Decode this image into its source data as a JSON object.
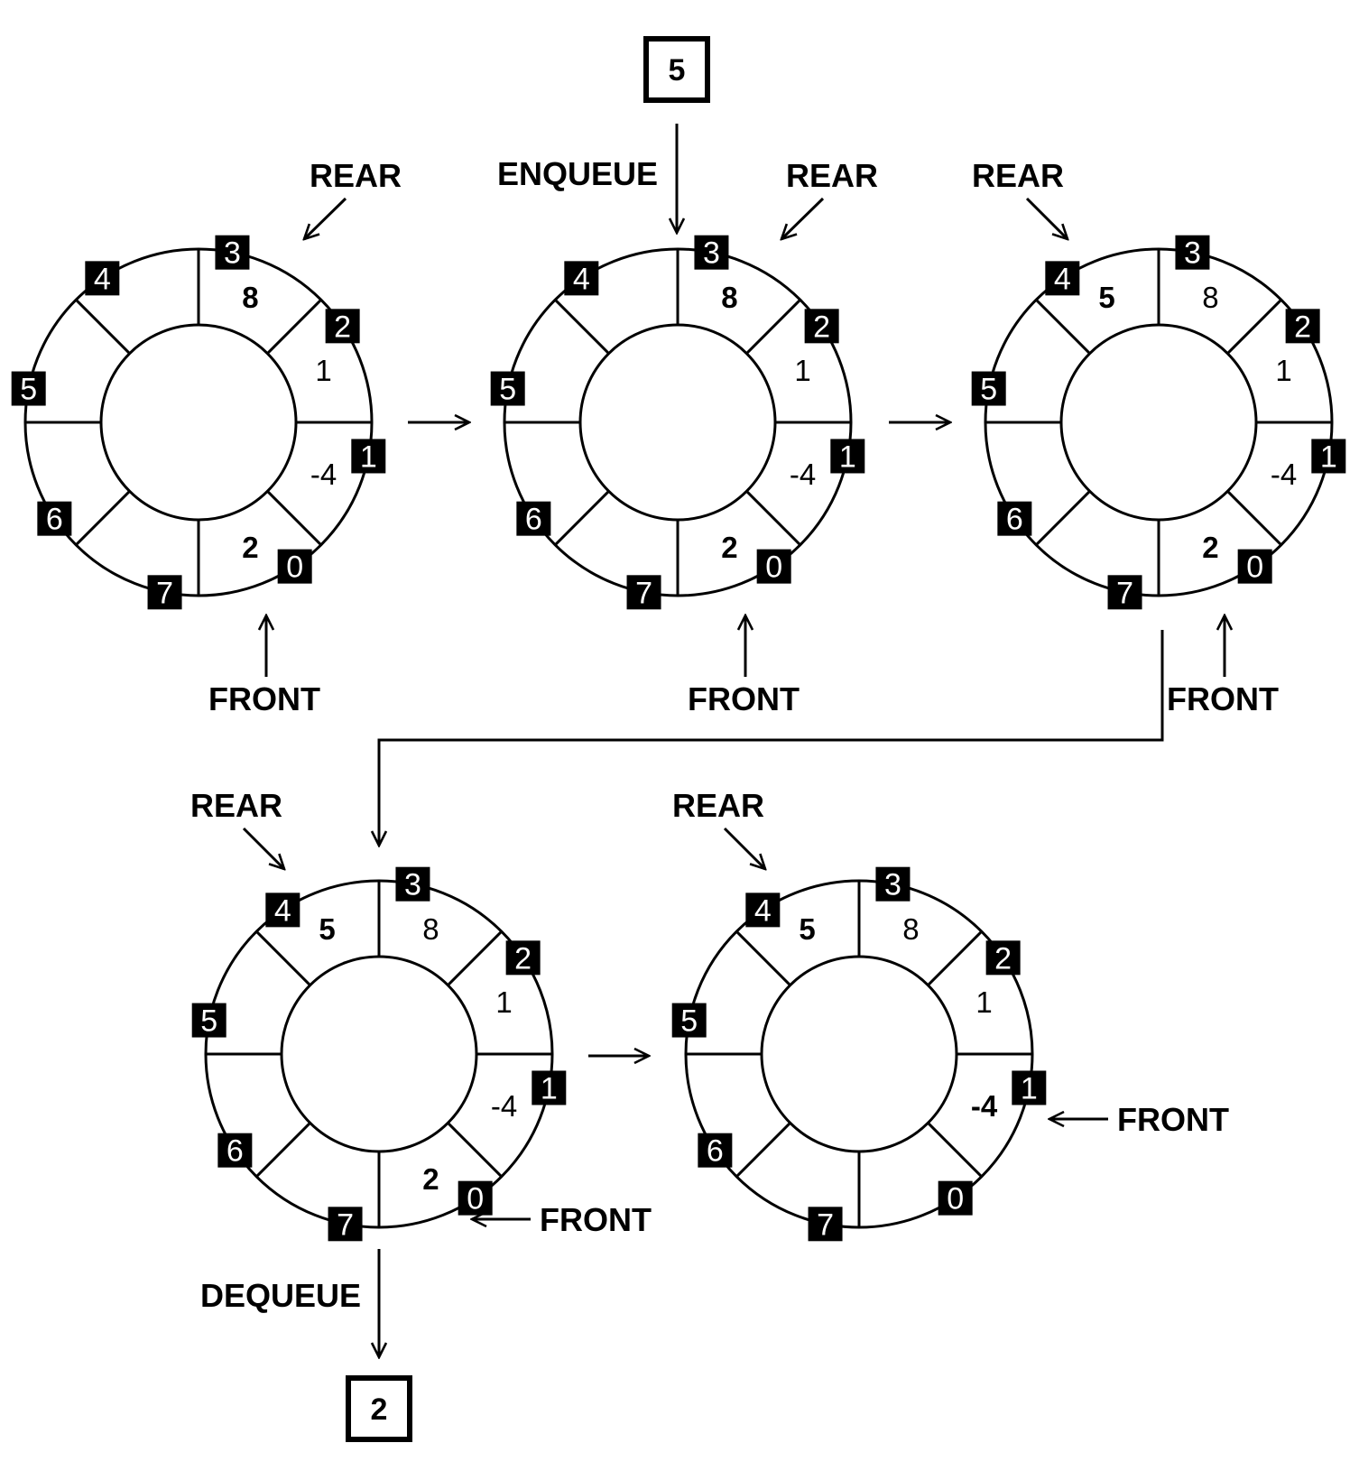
{
  "labels": {
    "rear": "REAR",
    "front": "FRONT",
    "enqueue": "ENQUEUE",
    "dequeue": "DEQUEUE"
  },
  "enqueued_value": "5",
  "dequeued_value": "2",
  "states": [
    {
      "name": "initial",
      "slots": [
        {
          "index": "0",
          "value": "2",
          "bold": true
        },
        {
          "index": "1",
          "value": "-4",
          "bold": false
        },
        {
          "index": "2",
          "value": "1",
          "bold": false
        },
        {
          "index": "3",
          "value": "8",
          "bold": true
        },
        {
          "index": "4",
          "value": "",
          "bold": false
        },
        {
          "index": "5",
          "value": "",
          "bold": false
        },
        {
          "index": "6",
          "value": "",
          "bold": false
        },
        {
          "index": "7",
          "value": "",
          "bold": false
        }
      ]
    },
    {
      "name": "enqueue",
      "slots": [
        {
          "index": "0",
          "value": "2",
          "bold": true
        },
        {
          "index": "1",
          "value": "-4",
          "bold": false
        },
        {
          "index": "2",
          "value": "1",
          "bold": false
        },
        {
          "index": "3",
          "value": "8",
          "bold": true
        },
        {
          "index": "4",
          "value": "",
          "bold": false
        },
        {
          "index": "5",
          "value": "",
          "bold": false
        },
        {
          "index": "6",
          "value": "",
          "bold": false
        },
        {
          "index": "7",
          "value": "",
          "bold": false
        }
      ]
    },
    {
      "name": "after-enqueue",
      "slots": [
        {
          "index": "0",
          "value": "2",
          "bold": true
        },
        {
          "index": "1",
          "value": "-4",
          "bold": false
        },
        {
          "index": "2",
          "value": "1",
          "bold": false
        },
        {
          "index": "3",
          "value": "8",
          "bold": false
        },
        {
          "index": "4",
          "value": "5",
          "bold": true
        },
        {
          "index": "5",
          "value": "",
          "bold": false
        },
        {
          "index": "6",
          "value": "",
          "bold": false
        },
        {
          "index": "7",
          "value": "",
          "bold": false
        }
      ]
    },
    {
      "name": "dequeue",
      "slots": [
        {
          "index": "0",
          "value": "2",
          "bold": true
        },
        {
          "index": "1",
          "value": "-4",
          "bold": false
        },
        {
          "index": "2",
          "value": "1",
          "bold": false
        },
        {
          "index": "3",
          "value": "8",
          "bold": false
        },
        {
          "index": "4",
          "value": "5",
          "bold": true
        },
        {
          "index": "5",
          "value": "",
          "bold": false
        },
        {
          "index": "6",
          "value": "",
          "bold": false
        },
        {
          "index": "7",
          "value": "",
          "bold": false
        }
      ]
    },
    {
      "name": "after-dequeue",
      "slots": [
        {
          "index": "0",
          "value": "",
          "bold": false
        },
        {
          "index": "1",
          "value": "-4",
          "bold": true
        },
        {
          "index": "2",
          "value": "1",
          "bold": false
        },
        {
          "index": "3",
          "value": "8",
          "bold": false
        },
        {
          "index": "4",
          "value": "5",
          "bold": true
        },
        {
          "index": "5",
          "value": "",
          "bold": false
        },
        {
          "index": "6",
          "value": "",
          "bold": false
        },
        {
          "index": "7",
          "value": "",
          "bold": false
        }
      ]
    }
  ]
}
